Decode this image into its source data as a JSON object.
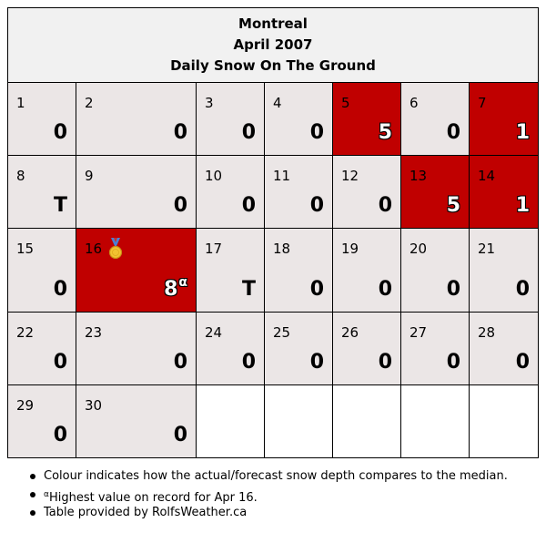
{
  "title": {
    "city": "Montreal",
    "period": "April 2007",
    "subtitle": "Daily Snow On The Ground"
  },
  "legend_colors": {
    "above_median": "#c00000",
    "normal": "#ebe6e6",
    "header": "#f1f1f1"
  },
  "weeks": [
    [
      {
        "day": "1",
        "value": "0",
        "red": false
      },
      {
        "day": "2",
        "value": "0",
        "red": false
      },
      {
        "day": "3",
        "value": "0",
        "red": false
      },
      {
        "day": "4",
        "value": "0",
        "red": false
      },
      {
        "day": "5",
        "value": "5",
        "red": true
      },
      {
        "day": "6",
        "value": "0",
        "red": false
      },
      {
        "day": "7",
        "value": "1",
        "red": true
      }
    ],
    [
      {
        "day": "8",
        "value": "T",
        "red": false
      },
      {
        "day": "9",
        "value": "0",
        "red": false
      },
      {
        "day": "10",
        "value": "0",
        "red": false
      },
      {
        "day": "11",
        "value": "0",
        "red": false
      },
      {
        "day": "12",
        "value": "0",
        "red": false
      },
      {
        "day": "13",
        "value": "5",
        "red": true
      },
      {
        "day": "14",
        "value": "1",
        "red": true
      }
    ],
    [
      {
        "day": "15",
        "value": "0",
        "red": false
      },
      {
        "day": "16",
        "value": "8",
        "red": true,
        "sup": "α",
        "medal": "gold-medal-icon"
      },
      {
        "day": "17",
        "value": "T",
        "red": false
      },
      {
        "day": "18",
        "value": "0",
        "red": false
      },
      {
        "day": "19",
        "value": "0",
        "red": false
      },
      {
        "day": "20",
        "value": "0",
        "red": false
      },
      {
        "day": "21",
        "value": "0",
        "red": false
      }
    ],
    [
      {
        "day": "22",
        "value": "0",
        "red": false
      },
      {
        "day": "23",
        "value": "0",
        "red": false
      },
      {
        "day": "24",
        "value": "0",
        "red": false
      },
      {
        "day": "25",
        "value": "0",
        "red": false
      },
      {
        "day": "26",
        "value": "0",
        "red": false
      },
      {
        "day": "27",
        "value": "0",
        "red": false
      },
      {
        "day": "28",
        "value": "0",
        "red": false
      }
    ],
    [
      {
        "day": "29",
        "value": "0",
        "red": false
      },
      {
        "day": "30",
        "value": "0",
        "red": false
      },
      {
        "empty": true
      },
      {
        "empty": true
      },
      {
        "empty": true
      },
      {
        "empty": true
      },
      {
        "empty": true
      }
    ]
  ],
  "notes": {
    "colour": "Colour indicates how the actual/forecast snow depth compares to the median.",
    "record_marker": "α",
    "record_text": "Highest value on record for Apr 16.",
    "provider": "Table provided by RolfsWeather.ca"
  }
}
